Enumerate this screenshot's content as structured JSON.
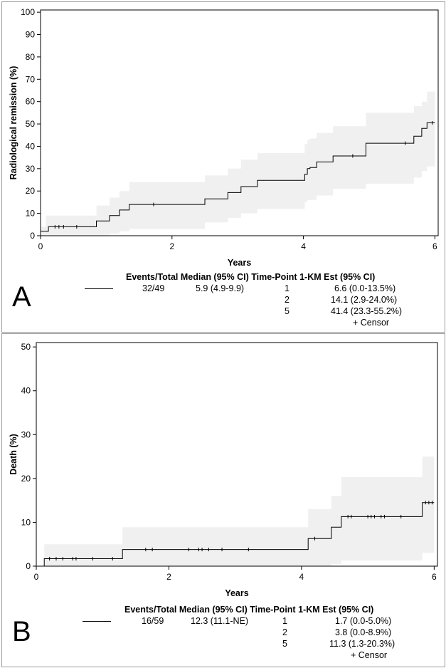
{
  "chart_data": [
    {
      "type": "line",
      "panel_letter": "A",
      "xlabel": "Years",
      "ylabel": "Radiological remission (%)",
      "xlim": [
        0,
        6.05
      ],
      "ylim": [
        0,
        101
      ],
      "x_ticks": [
        0,
        2,
        4,
        6
      ],
      "y_ticks": [
        0,
        10,
        20,
        30,
        40,
        50,
        60,
        70,
        80,
        90,
        100
      ],
      "grid": false,
      "series": [
        {
          "x": [
            0,
            0.08,
            0.12,
            0.85,
            1.05,
            1.2,
            1.35,
            2.5,
            2.85,
            3.05,
            3.3,
            4.02,
            4.06,
            4.1,
            4.2,
            4.45,
            4.95,
            5.68,
            5.8,
            5.88,
            6.0
          ],
          "y": [
            2,
            2,
            4,
            6.6,
            9,
            11.5,
            14,
            16.5,
            19.3,
            22,
            24.8,
            27.5,
            30,
            30.5,
            33,
            35.7,
            41.4,
            44.5,
            48,
            50.5,
            50.5
          ],
          "ci_upper": [
            4,
            9,
            9,
            13.5,
            17,
            20,
            24,
            27,
            30,
            34,
            37,
            41,
            43,
            43.5,
            46,
            49,
            55,
            58,
            60,
            64.5,
            64.5
          ],
          "ci_lower": [
            0,
            0,
            0,
            0,
            1,
            2,
            3,
            6,
            8,
            10,
            12,
            15,
            16,
            16,
            18,
            21,
            23.3,
            26,
            29,
            31,
            31
          ],
          "censor_x": [
            0.22,
            0.28,
            0.35,
            0.55,
            1.72,
            4.75,
            5.55,
            5.96
          ]
        }
      ],
      "table": {
        "header": [
          "Events/Total",
          "Median (95% CI)",
          "Time-Point",
          "1-KM Est (95% CI)"
        ],
        "events_total": "32/49",
        "median": "5.9 (4.9-9.9)",
        "rows": [
          {
            "time": "1",
            "est": "6.6 (0.0-13.5%)"
          },
          {
            "time": "2",
            "est": "14.1 (2.9-24.0%)"
          },
          {
            "time": "5",
            "est": "41.4 (23.3-55.2%)"
          }
        ],
        "censor_label": "+ Censor"
      }
    },
    {
      "type": "line",
      "panel_letter": "B",
      "xlabel": "Years",
      "ylabel": "Death (%)",
      "xlim": [
        0,
        6.05
      ],
      "ylim": [
        0,
        51
      ],
      "x_ticks": [
        0,
        2,
        4,
        6
      ],
      "y_ticks": [
        0,
        10,
        20,
        30,
        40,
        50
      ],
      "grid": false,
      "series": [
        {
          "x": [
            0,
            0.12,
            1.3,
            4.1,
            4.45,
            4.6,
            5.82,
            6.0
          ],
          "y": [
            0,
            1.7,
            3.8,
            6.3,
            8.9,
            11.3,
            14.5,
            14.5
          ],
          "ci_upper": [
            0,
            5,
            8.9,
            13,
            16,
            20.3,
            25,
            25
          ],
          "ci_lower": [
            0,
            0,
            0,
            0,
            0.5,
            1.3,
            3,
            3
          ],
          "censor_x": [
            0.2,
            0.3,
            0.4,
            0.55,
            0.6,
            0.85,
            1.15,
            1.65,
            1.75,
            2.3,
            2.45,
            2.5,
            2.6,
            2.8,
            3.2,
            4.2,
            4.7,
            4.75,
            5.0,
            5.05,
            5.1,
            5.2,
            5.25,
            5.5,
            5.87,
            5.92,
            5.97
          ]
        }
      ],
      "table": {
        "header": [
          "Events/Total",
          "Median (95% CI)",
          "Time-Point",
          "1-KM Est (95% CI)"
        ],
        "events_total": "16/59",
        "median": "12.3 (11.1-NE)",
        "rows": [
          {
            "time": "1",
            "est": "1.7 (0.0-5.0%)"
          },
          {
            "time": "2",
            "est": "3.8 (0.0-8.9%)"
          },
          {
            "time": "5",
            "est": "11.3 (1.3-20.3%)"
          }
        ],
        "censor_label": "+ Censor"
      }
    }
  ]
}
